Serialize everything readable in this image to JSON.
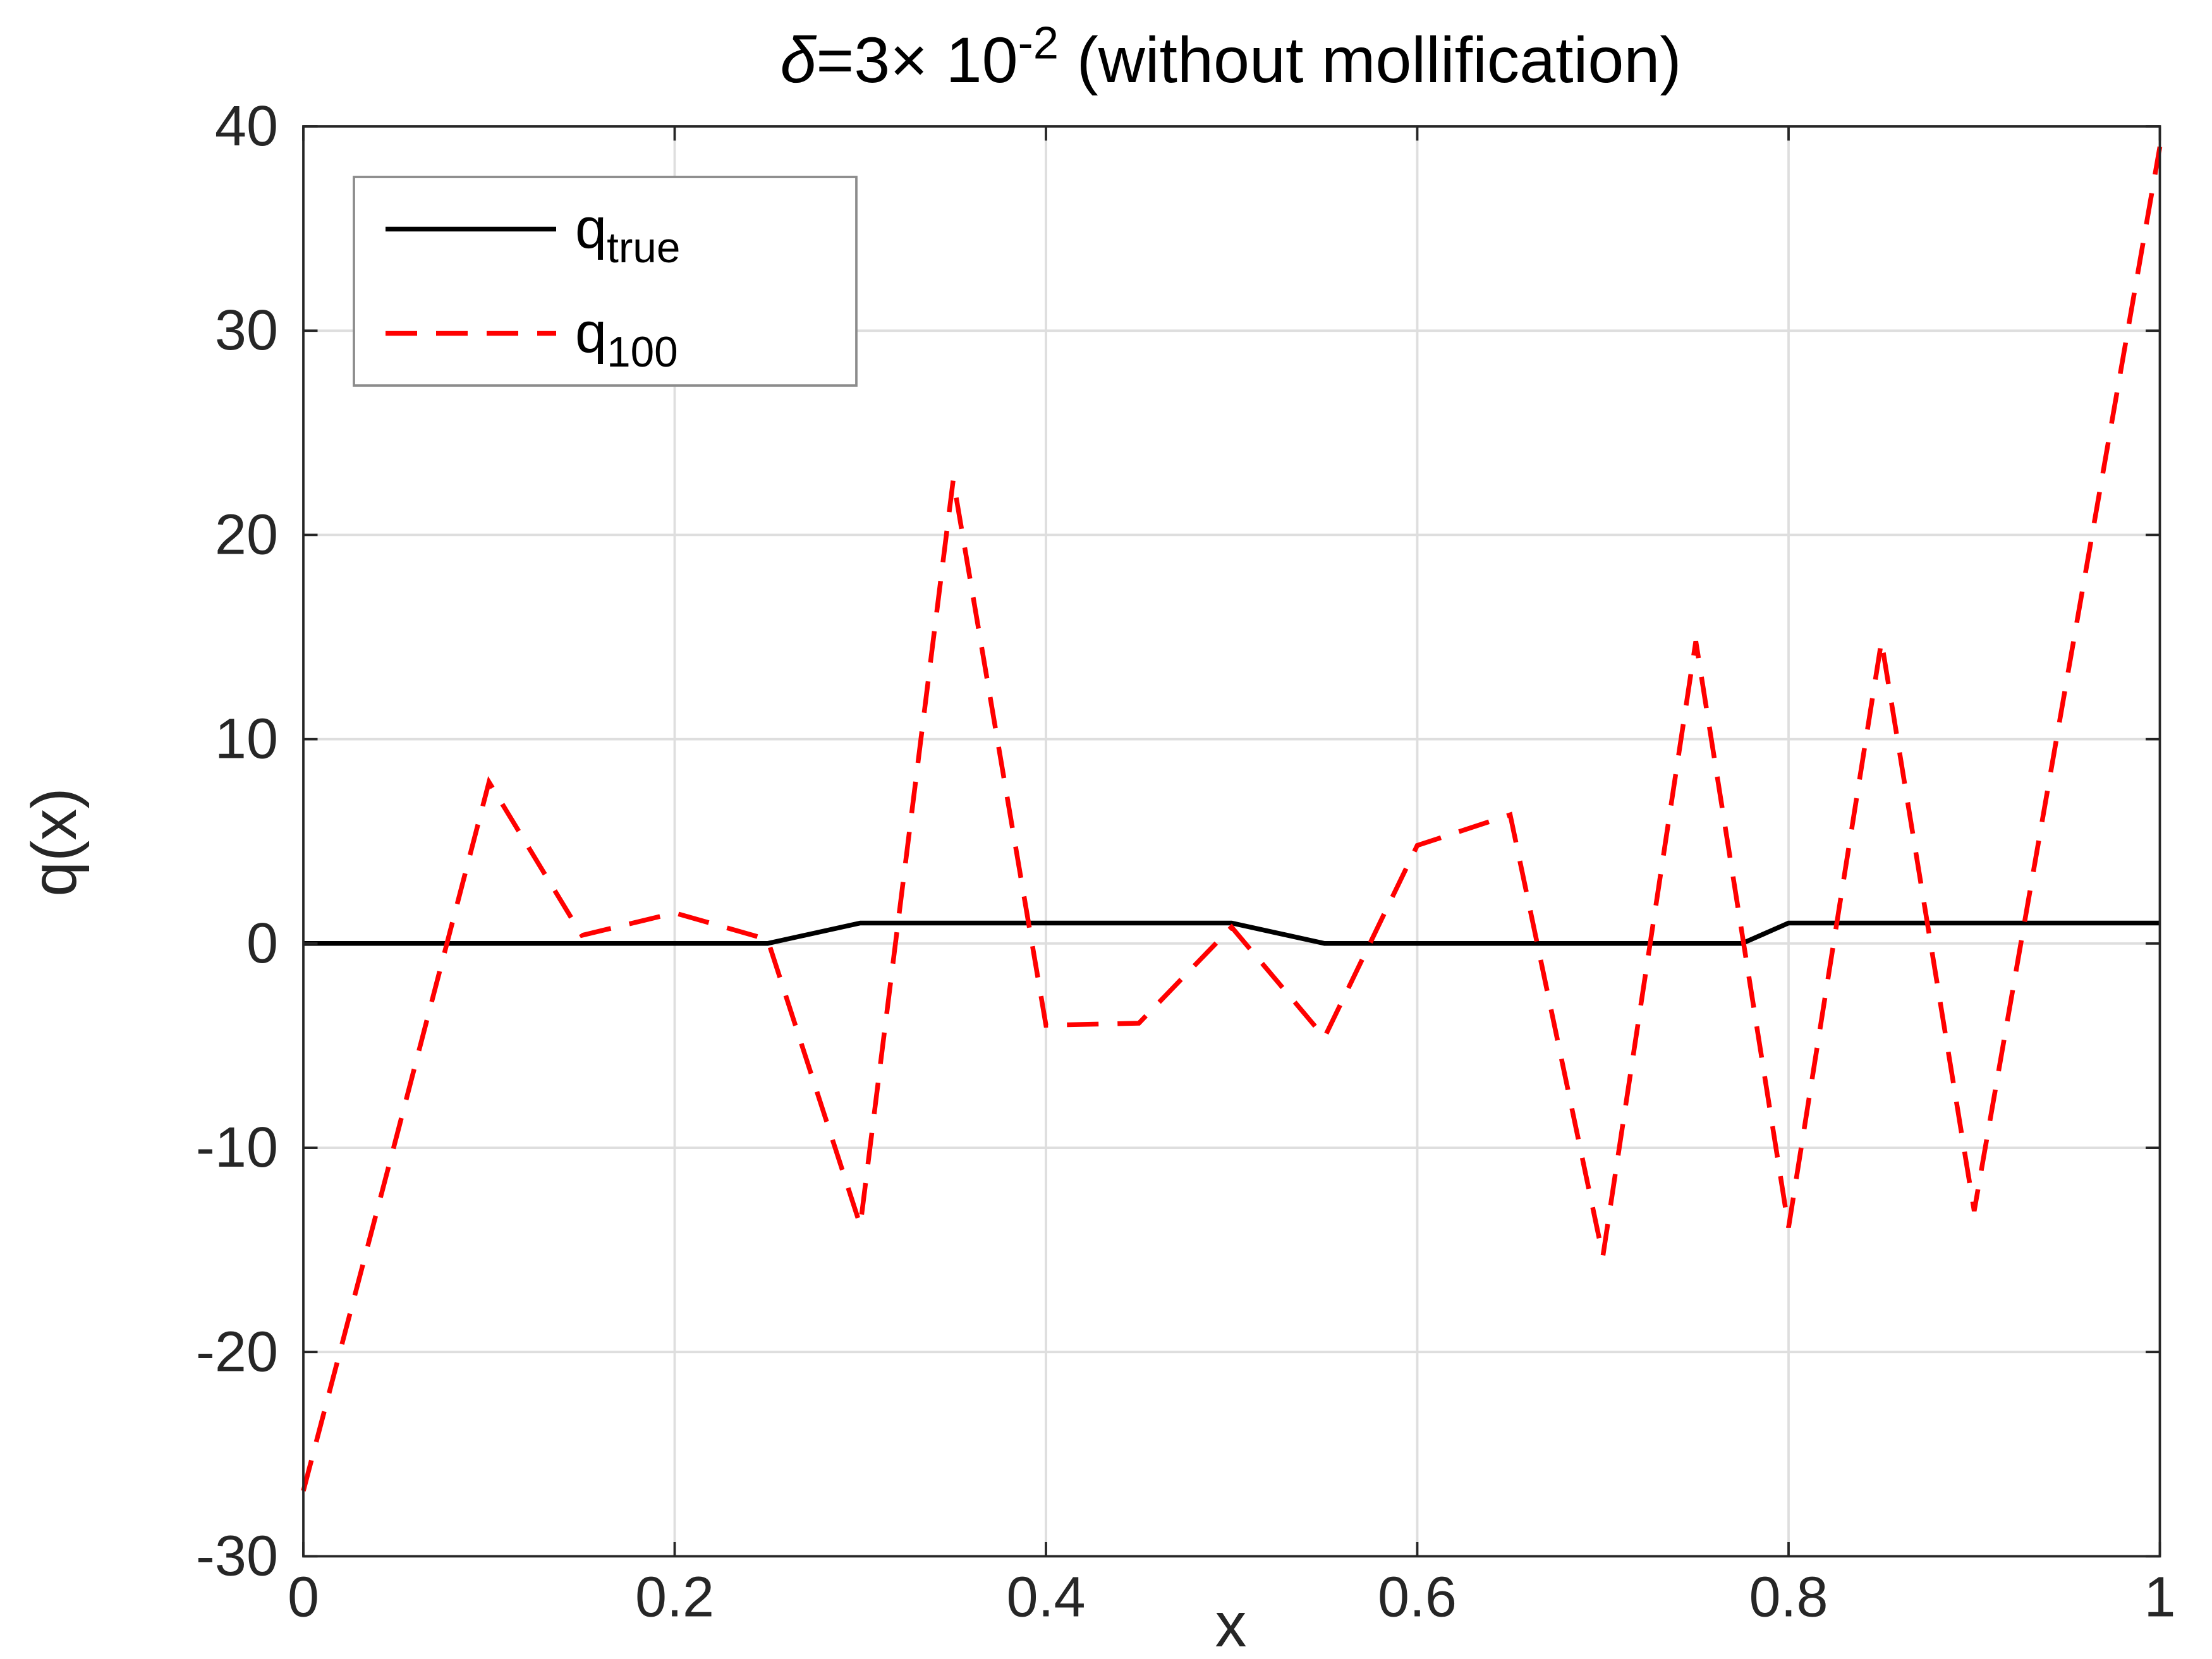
{
  "figure": {
    "background": "#ffffff"
  },
  "title": {
    "delta": "δ",
    "mid": "=3× 10",
    "sup": "-2",
    "post": " (without mollification)",
    "full_text": "δ=3× 10^{-2} (without mollification)"
  },
  "axes": {
    "xlabel": "x",
    "ylabel": "q(x)",
    "axis_color": "#262626",
    "grid_color": "#dedede"
  },
  "legend": {
    "position": "top-left",
    "border_color": "#8c8c8c",
    "background": "#ffffff",
    "entries": [
      {
        "base": "q",
        "sub": "true",
        "full": "q_true",
        "color": "#000000",
        "style": "solid"
      },
      {
        "base": "q",
        "sub": "100",
        "full": "q_100",
        "color": "#ff0000",
        "style": "dashed"
      }
    ]
  },
  "chart_data": {
    "type": "line",
    "title": "δ=3× 10^{-2} (without mollification)",
    "xlabel": "x",
    "ylabel": "q(x)",
    "xlim": [
      0,
      1
    ],
    "ylim": [
      -30,
      40
    ],
    "xticks": [
      0,
      0.2,
      0.4,
      0.6,
      0.8,
      1
    ],
    "xtick_labels": [
      "0",
      "0.2",
      "0.4",
      "0.6",
      "0.8",
      "1"
    ],
    "yticks": [
      -30,
      -20,
      -10,
      0,
      10,
      20,
      30,
      40
    ],
    "ytick_labels": [
      "-30",
      "-20",
      "-10",
      "0",
      "10",
      "20",
      "30",
      "40"
    ],
    "grid": true,
    "legend_position": "top-left",
    "series": [
      {
        "name": "q_true",
        "color": "#000000",
        "style": "solid",
        "line_width": 3,
        "x": [
          0,
          0.25,
          0.3,
          0.5,
          0.55,
          0.775,
          0.8,
          1
        ],
        "y": [
          0,
          0,
          1,
          1,
          0,
          0,
          1,
          1
        ]
      },
      {
        "name": "q_100",
        "color": "#ff0000",
        "style": "dashed",
        "line_width": 3,
        "x": [
          0,
          0.05,
          0.1,
          0.15,
          0.2,
          0.25,
          0.3,
          0.35,
          0.4,
          0.45,
          0.5,
          0.55,
          0.6,
          0.65,
          0.7,
          0.75,
          0.8,
          0.85,
          0.9,
          0.95,
          1
        ],
        "y": [
          -26.8,
          -9.5,
          7.9,
          0.4,
          1.5,
          0.2,
          -13.8,
          22.7,
          -4.0,
          -3.9,
          0.8,
          -4.6,
          4.8,
          6.3,
          -15.3,
          14.8,
          -13.9,
          14.8,
          -13.1,
          13.0,
          39.0
        ]
      }
    ]
  }
}
